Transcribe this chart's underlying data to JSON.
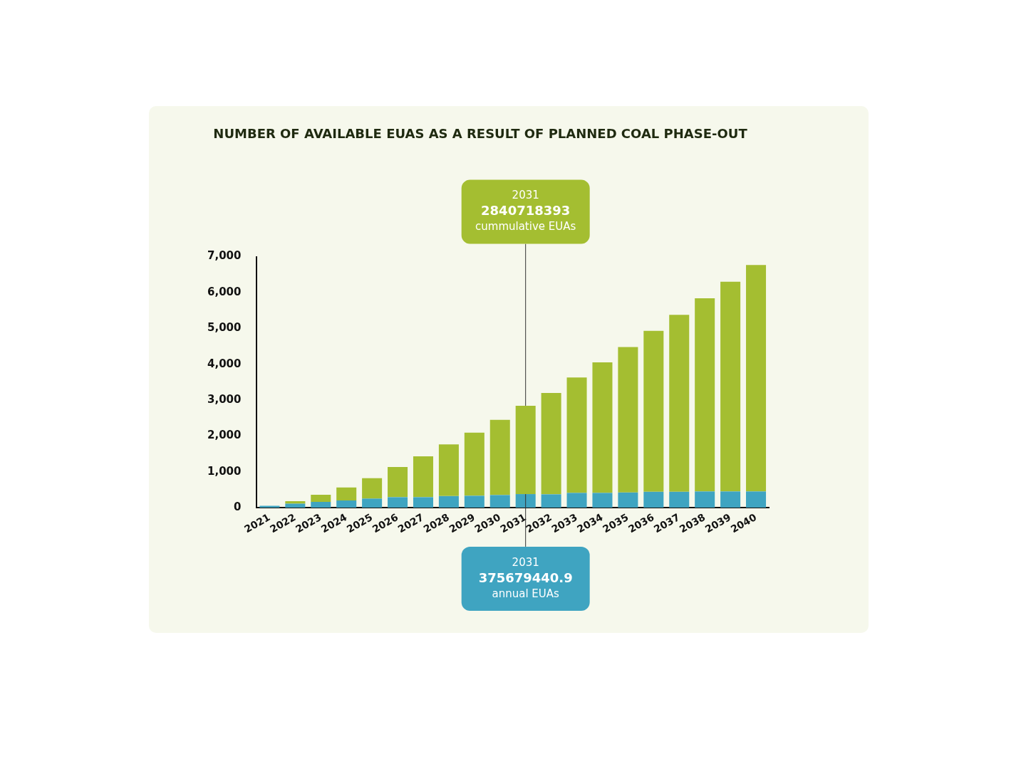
{
  "chart_data": {
    "type": "bar",
    "title": "NUMBER OF AVAILABLE EUAS AS A RESULT OF PLANNED COAL PHASE-OUT",
    "categories": [
      "2021",
      "2022",
      "2023",
      "2024",
      "2025",
      "2026",
      "2027",
      "2028",
      "2029",
      "2030",
      "2031",
      "2032",
      "2033",
      "2034",
      "2035",
      "2036",
      "2037",
      "2038",
      "2039",
      "2040"
    ],
    "series": [
      {
        "color": "#3fa4c1",
        "values": [
          50,
          110,
          160,
          200,
          250,
          290,
          290,
          320,
          330,
          350,
          375.6794409,
          370,
          410,
          410,
          420,
          440,
          440,
          450,
          450,
          450
        ]
      },
      {
        "color": "#a4be31",
        "values": [
          null,
          70,
          195,
          360,
          570,
          840,
          1140,
          1440,
          1760,
          2100,
          2465.0389521,
          2830,
          3220,
          3640,
          4060,
          4490,
          4940,
          5390,
          5850,
          6320
        ]
      }
    ],
    "stacked": true,
    "ylim": [
      0,
      7000
    ],
    "yticks": [
      0,
      {
        "value": 1000,
        "label": "1,000"
      },
      {
        "value": 2000,
        "label": "2,000"
      },
      {
        "value": 3000,
        "label": "3,000"
      },
      {
        "value": 4000,
        "label": "4,000"
      },
      {
        "value": 5000,
        "label": "5,000"
      },
      {
        "value": 6000,
        "label": "6,000"
      },
      {
        "value": 7000,
        "label": "7,000"
      }
    ],
    "grid": false,
    "legend": false,
    "annotations": [
      {
        "text": "2031\n2840718393\ncummulative EUAs",
        "x": "2031",
        "y": 2840.718393
      },
      {
        "text": "2031\n375679440.9\nannual EUAs",
        "x": "2031",
        "y": 375.6794409
      }
    ]
  }
}
